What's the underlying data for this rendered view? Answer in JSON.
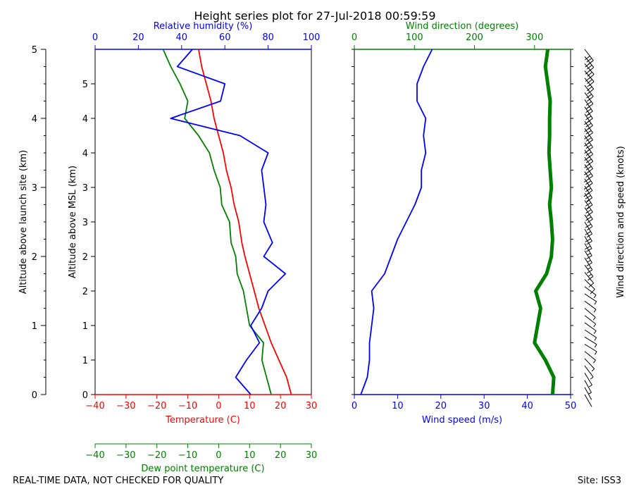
{
  "title": "Height series plot for 27-Jul-2018 00:59:59",
  "footer": {
    "left": "REAL-TIME DATA, NOT CHECKED FOR QUALITY",
    "right": "Site: ISS3"
  },
  "colors": {
    "temperature": "#ff0000",
    "dewpoint": "#008000",
    "humidity": "#0000ff",
    "wind_speed": "#0000ff",
    "wind_direction": "#008000",
    "barbs": "#000000"
  },
  "chart_data": [
    {
      "type": "line",
      "title": "Height series plot for 27-Jul-2018 00:59:59",
      "left_axis_label": "Altitude above launch site (km)",
      "left_axis_ticks": [
        "0",
        "1",
        "2",
        "3",
        "4",
        "5"
      ],
      "ylabel": "Altitude above MSL (km)",
      "ylabel_ticks": [
        "0",
        "1",
        "1",
        "2",
        "2",
        "3",
        "3",
        "4",
        "4",
        "5"
      ],
      "ylim": [
        0,
        5
      ],
      "xlabel": "Temperature (C)",
      "xticks": [
        "−40",
        "−30",
        "−20",
        "−10",
        "0",
        "10",
        "20",
        "30"
      ],
      "xlim": [
        -40,
        30
      ],
      "xlabel2": "Dew point temperature (C)",
      "xticks2": [
        "−40",
        "−30",
        "−20",
        "−10",
        "0",
        "10",
        "20",
        "30"
      ],
      "xlim2": [
        -40,
        30
      ],
      "top_label": "Relative humidity (%)",
      "top_ticks": [
        "0",
        "20",
        "40",
        "60",
        "80",
        "100"
      ],
      "top_lim": [
        0,
        100
      ],
      "series": [
        {
          "key": "temperature",
          "points": [
            [
              23.5,
              0.0
            ],
            [
              22.0,
              0.25
            ],
            [
              19.5,
              0.5
            ],
            [
              17.0,
              0.75
            ],
            [
              15.0,
              1.0
            ],
            [
              13.0,
              1.25
            ],
            [
              11.5,
              1.5
            ],
            [
              10.0,
              1.75
            ],
            [
              8.5,
              2.0
            ],
            [
              7.5,
              2.2
            ],
            [
              6.5,
              2.5
            ],
            [
              5.0,
              2.75
            ],
            [
              4.0,
              3.0
            ],
            [
              2.5,
              3.25
            ],
            [
              1.5,
              3.5
            ],
            [
              0.0,
              3.75
            ],
            [
              -1.5,
              4.0
            ],
            [
              -2.5,
              4.25
            ],
            [
              -4.0,
              4.5
            ],
            [
              -5.5,
              4.75
            ],
            [
              -6.5,
              5.0
            ]
          ],
          "axis": "temperature"
        },
        {
          "key": "dewpoint",
          "points": [
            [
              17.0,
              0.0
            ],
            [
              15.5,
              0.25
            ],
            [
              14.0,
              0.5
            ],
            [
              14.5,
              0.75
            ],
            [
              10.0,
              1.0
            ],
            [
              9.0,
              1.25
            ],
            [
              8.0,
              1.5
            ],
            [
              6.0,
              1.75
            ],
            [
              5.5,
              2.0
            ],
            [
              4.0,
              2.2
            ],
            [
              3.5,
              2.5
            ],
            [
              1.0,
              2.75
            ],
            [
              0.5,
              3.0
            ],
            [
              -1.5,
              3.25
            ],
            [
              -3.0,
              3.5
            ],
            [
              -6.5,
              3.75
            ],
            [
              -11.0,
              4.0
            ],
            [
              -10.0,
              4.25
            ],
            [
              -12.5,
              4.5
            ],
            [
              -15.5,
              4.75
            ],
            [
              -18.0,
              5.0
            ]
          ],
          "axis": "dewpoint"
        },
        {
          "key": "humidity",
          "points": [
            [
              72,
              0.0
            ],
            [
              65,
              0.25
            ],
            [
              70,
              0.5
            ],
            [
              76,
              0.75
            ],
            [
              72,
              1.0
            ],
            [
              77,
              1.25
            ],
            [
              80,
              1.5
            ],
            [
              88,
              1.75
            ],
            [
              78,
              2.0
            ],
            [
              82,
              2.2
            ],
            [
              78,
              2.5
            ],
            [
              79,
              2.75
            ],
            [
              78,
              3.0
            ],
            [
              77,
              3.25
            ],
            [
              80,
              3.5
            ],
            [
              67,
              3.75
            ],
            [
              35,
              4.0
            ],
            [
              58,
              4.25
            ],
            [
              60,
              4.5
            ],
            [
              38,
              4.75
            ],
            [
              45,
              5.0
            ]
          ],
          "axis": "humidity"
        }
      ]
    },
    {
      "type": "line",
      "xlabel": "Wind speed (m/s)",
      "xticks": [
        "0",
        "10",
        "20",
        "30",
        "40",
        "50"
      ],
      "xlim": [
        0,
        50
      ],
      "top_label": "Wind direction (degrees)",
      "top_ticks": [
        "0",
        "100",
        "200",
        "300"
      ],
      "top_lim": [
        0,
        360
      ],
      "ylim": [
        0,
        5
      ],
      "right_label": "Wind direction and speed (knots)",
      "series": [
        {
          "key": "wind_speed",
          "points": [
            [
              1.5,
              0.0
            ],
            [
              3.0,
              0.25
            ],
            [
              3.5,
              0.5
            ],
            [
              3.5,
              0.75
            ],
            [
              4.0,
              1.0
            ],
            [
              4.5,
              1.25
            ],
            [
              4.0,
              1.5
            ],
            [
              7.0,
              1.75
            ],
            [
              8.5,
              2.0
            ],
            [
              10.0,
              2.25
            ],
            [
              12.0,
              2.5
            ],
            [
              14.0,
              2.75
            ],
            [
              15.5,
              3.0
            ],
            [
              15.5,
              3.25
            ],
            [
              16.5,
              3.5
            ],
            [
              16.0,
              3.75
            ],
            [
              16.5,
              4.0
            ],
            [
              14.5,
              4.25
            ],
            [
              14.5,
              4.5
            ],
            [
              16.0,
              4.75
            ],
            [
              18.0,
              5.0
            ]
          ],
          "axis": "wind_speed"
        },
        {
          "key": "wind_direction",
          "points": [
            [
              330,
              0.0
            ],
            [
              332,
              0.25
            ],
            [
              318,
              0.5
            ],
            [
              300,
              0.75
            ],
            [
              305,
              1.0
            ],
            [
              310,
              1.25
            ],
            [
              302,
              1.5
            ],
            [
              320,
              1.75
            ],
            [
              328,
              2.0
            ],
            [
              330,
              2.25
            ],
            [
              328,
              2.5
            ],
            [
              325,
              2.75
            ],
            [
              328,
              3.0
            ],
            [
              326,
              3.25
            ],
            [
              324,
              3.5
            ],
            [
              325,
              3.75
            ],
            [
              325,
              4.0
            ],
            [
              326,
              4.25
            ],
            [
              322,
              4.5
            ],
            [
              318,
              4.75
            ],
            [
              322,
              5.0
            ]
          ],
          "axis": "wind_direction"
        }
      ]
    }
  ]
}
